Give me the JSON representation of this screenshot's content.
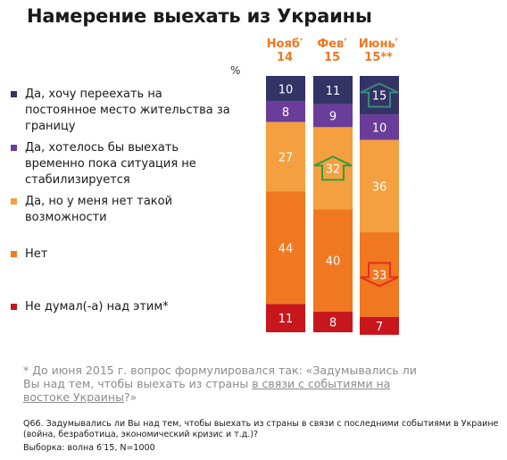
{
  "title": "Намерение выехать из Украины",
  "unit_label": "%",
  "legend": [
    {
      "label": "Да, хочу переехать на постоянное место жительства за границу",
      "color": "#333366"
    },
    {
      "label": "Да, хотелось бы выехать временно пока ситуация не стабилизируется",
      "color": "#6b3d9a"
    },
    {
      "label": "Да, но у меня нет такой возможности",
      "color": "#f5a040"
    },
    {
      "label": "Нет",
      "color": "#f07820"
    },
    {
      "label": "Не думал(-а) над этим*",
      "color": "#c8161d"
    }
  ],
  "columns": [
    {
      "line1": "Нояб′",
      "line2": "14"
    },
    {
      "line1": "Фев′",
      "line2": "15"
    },
    {
      "line1": "Июнь′",
      "line2": "15**"
    }
  ],
  "footnote": {
    "part1": "* До июня 2015 г. вопрос формулировался так: «Задумывались ли Вы над тем, чтобы выехать из страны ",
    "underlined": "в связи с событиями на востоке Украины",
    "part2": "?»"
  },
  "question": "Q66. Задумывались ли Вы над тем, чтобы выехать из страны в связи с последними событиями в Украине (война, безработица, экономический кризис и т.д.)?",
  "sample": "Выборка: волна 6′15, N=1000",
  "chart_data": {
    "type": "bar",
    "stacked": true,
    "orientation": "vertical",
    "categories": [
      "Нояб′ 14",
      "Фев′ 15",
      "Июнь′ 15**"
    ],
    "series": [
      {
        "name": "Да, хочу переехать на постоянное место жительства за границу",
        "values": [
          10,
          11,
          15
        ],
        "color": "#333366"
      },
      {
        "name": "Да, хотелось бы выехать временно пока ситуация не стабилизируется",
        "values": [
          8,
          9,
          10
        ],
        "color": "#6b3d9a"
      },
      {
        "name": "Да, но у меня нет такой возможности",
        "values": [
          27,
          32,
          36
        ],
        "color": "#f5a040"
      },
      {
        "name": "Нет",
        "values": [
          44,
          40,
          33
        ],
        "color": "#f07820"
      },
      {
        "name": "Не думал(-а) над этим*",
        "values": [
          11,
          8,
          7
        ],
        "color": "#c8161d"
      }
    ],
    "annotations": [
      {
        "category": "Фев′ 15",
        "series": "Да, но у меня нет такой возможности",
        "direction": "up",
        "color": "#3a9a3a"
      },
      {
        "category": "Июнь′ 15**",
        "series": "Да, хочу переехать на постоянное место жительства за границу",
        "direction": "up",
        "color": "#3a8a7a"
      },
      {
        "category": "Июнь′ 15**",
        "series": "Нет",
        "direction": "down",
        "color": "#e03020"
      }
    ]
  }
}
